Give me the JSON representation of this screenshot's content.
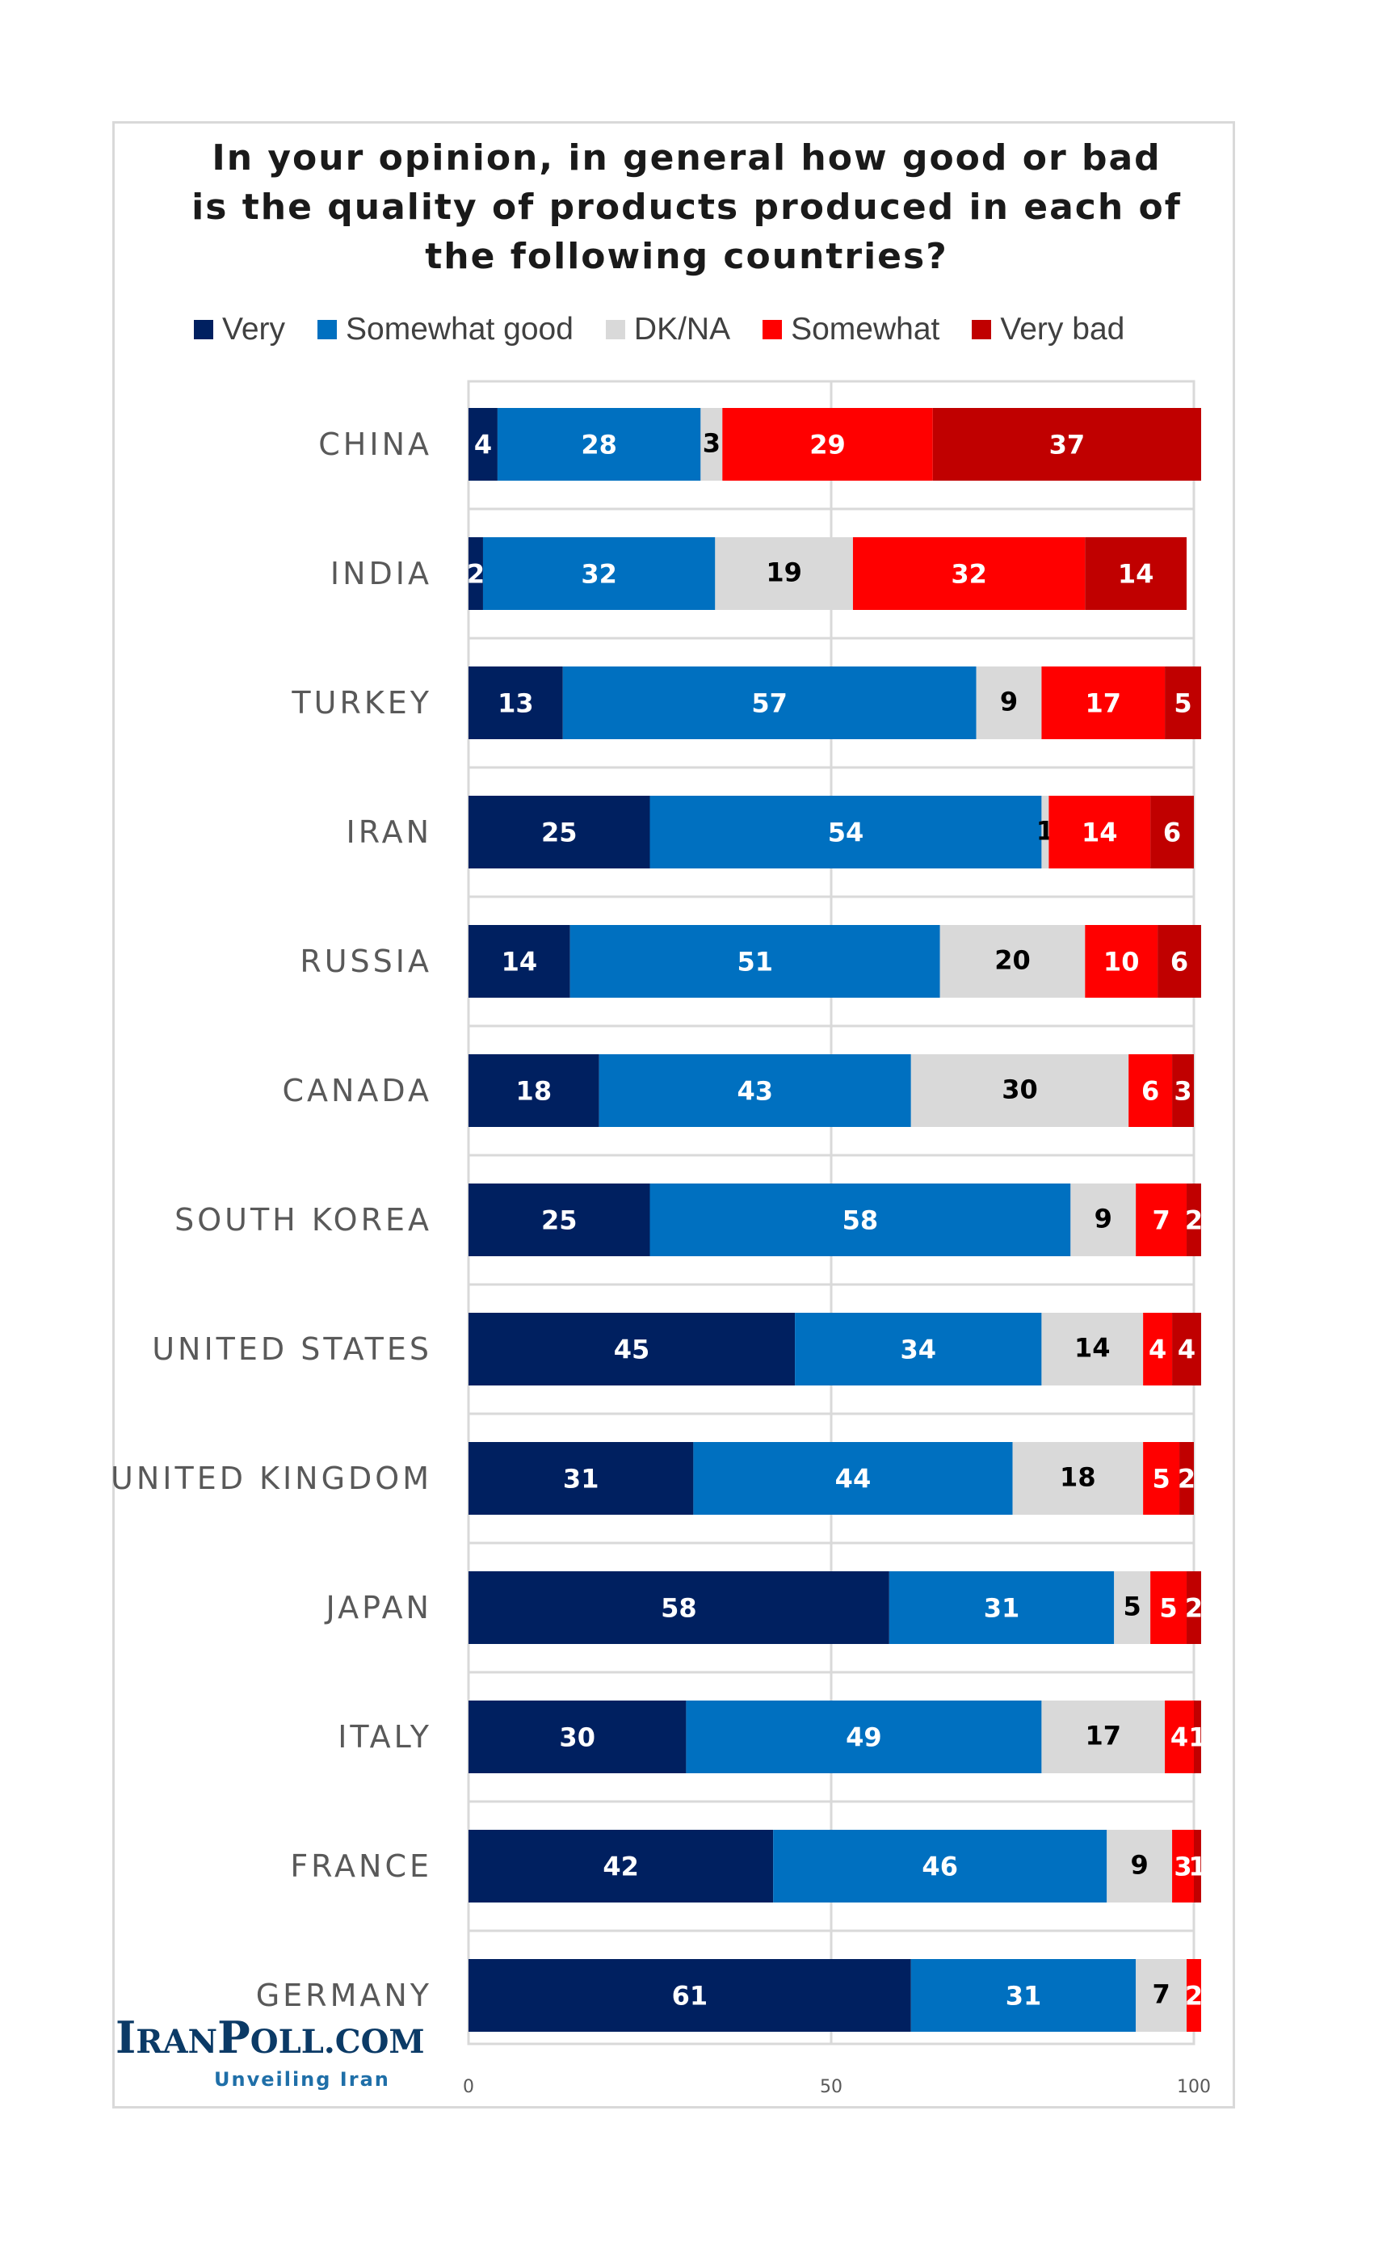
{
  "chart_data": {
    "type": "bar",
    "orientation": "horizontal-stacked",
    "title": "In your opinion, in general how good or bad\nis the quality of products produced in each of\nthe following countries?",
    "xlim": [
      0,
      100
    ],
    "xticks": [
      "0",
      "50",
      "100"
    ],
    "legend_position": "top",
    "categories": [
      "CHINA",
      "INDIA",
      "TURKEY",
      "IRAN",
      "RUSSIA",
      "CANADA",
      "SOUTH KOREA",
      "UNITED STATES",
      "UNITED KINGDOM",
      "JAPAN",
      "ITALY",
      "FRANCE",
      "GERMANY"
    ],
    "series": [
      {
        "name": "Very",
        "color": "#002060",
        "label_color": "#ffffff",
        "values": [
          4,
          2,
          13,
          25,
          14,
          18,
          25,
          45,
          31,
          58,
          30,
          42,
          61
        ]
      },
      {
        "name": "Somewhat good",
        "color": "#0070c0",
        "label_color": "#ffffff",
        "values": [
          28,
          32,
          57,
          54,
          51,
          43,
          58,
          34,
          44,
          31,
          49,
          46,
          31
        ]
      },
      {
        "name": "DK/NA",
        "color": "#d9d9d9",
        "label_color": "#000000",
        "values": [
          3,
          19,
          9,
          1,
          20,
          30,
          9,
          14,
          18,
          5,
          17,
          9,
          7
        ]
      },
      {
        "name": "Somewhat",
        "color": "#ff0000",
        "label_color": "#ffffff",
        "values": [
          29,
          32,
          17,
          14,
          10,
          6,
          7,
          4,
          5,
          5,
          4,
          3,
          2
        ]
      },
      {
        "name": "Very bad",
        "color": "#c00000",
        "label_color": "#ffffff",
        "values": [
          37,
          14,
          5,
          6,
          6,
          3,
          2,
          4,
          2,
          2,
          1,
          1,
          0
        ]
      }
    ]
  },
  "logo": {
    "main_big": "I",
    "main_rest_1": "RAN",
    "main_big_2": "P",
    "main_rest_2": "OLL.COM",
    "tagline": "Unveiling Iran"
  }
}
